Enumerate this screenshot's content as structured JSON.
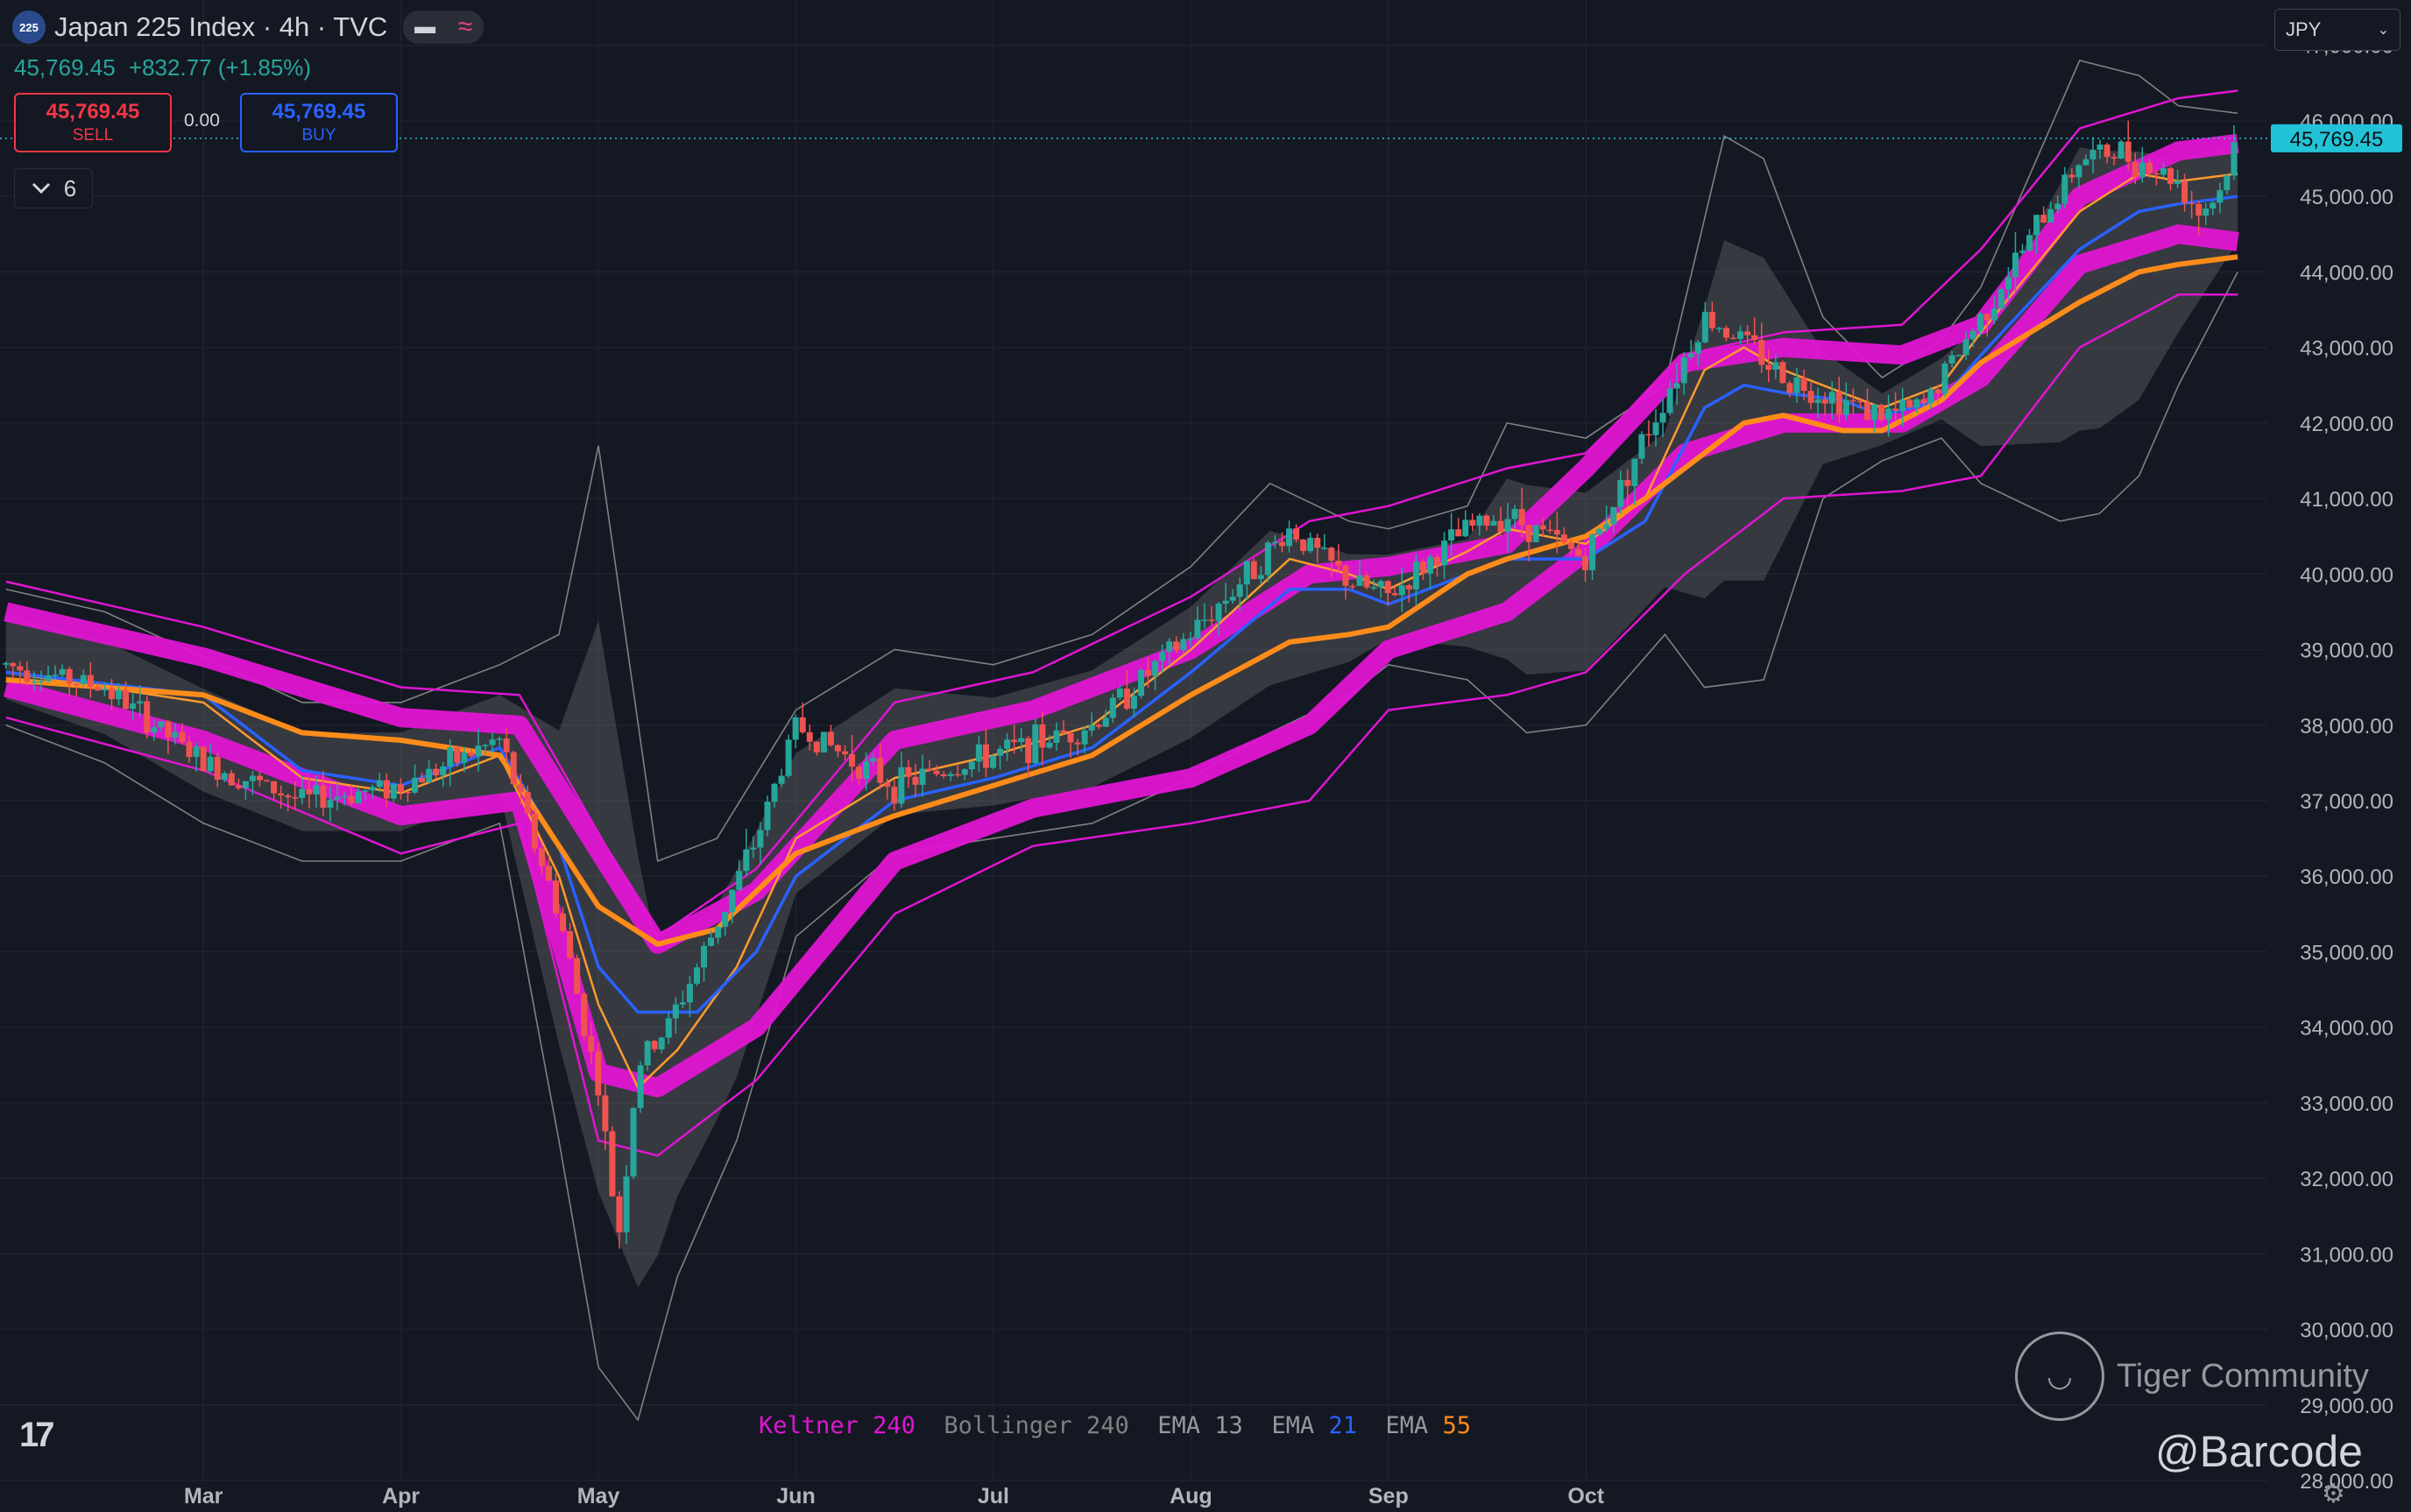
{
  "header": {
    "symbol_badge": "225",
    "title": "Japan 225 Index · 4h · TVC",
    "last_price": "45,769.45",
    "change": "+832.77 (+1.85%)",
    "sell_price": "45,769.45",
    "sell_label": "SELL",
    "buy_price": "45,769.45",
    "buy_label": "BUY",
    "spread": "0.00",
    "indicator_count": "6",
    "currency": "JPY"
  },
  "legend": {
    "keltner_name": "Keltner",
    "keltner_len": "240",
    "boll_name": "Bollinger",
    "boll_len": "240",
    "ema1_name": "EMA",
    "ema1_len": "13",
    "ema2_name": "EMA",
    "ema2_len": "21",
    "ema3_name": "EMA",
    "ema3_len": "55"
  },
  "watermark": {
    "brand": "Tiger Community",
    "handle": "@Barcode"
  },
  "colors": {
    "background": "#141823",
    "up": "#26a69a",
    "down": "#ef5350",
    "keltner": "#e015d3",
    "bollinger": "#808080",
    "ema13": "#ff9a2e",
    "ema21": "#2962ff",
    "ema55": "#ff8c1a",
    "price_line": "#22c3d6"
  },
  "chart_data": {
    "type": "line",
    "title": "Japan 225 Index · 4h · TVC",
    "xlabel": "",
    "ylabel": "",
    "x_ticks": [
      "Mar",
      "Apr",
      "May",
      "Jun",
      "Jul",
      "Aug",
      "Sep",
      "Oct"
    ],
    "ylim": [
      28000,
      47600
    ],
    "y_ticks": [
      47000,
      46000,
      45000,
      44000,
      43000,
      42000,
      41000,
      40000,
      39000,
      38000,
      37000,
      36000,
      35000,
      34000,
      33000,
      32000,
      31000,
      30000,
      29000,
      28000
    ],
    "y_tick_labels": [
      "47,000.00",
      "46,000.00",
      "45,000.00",
      "44,000.00",
      "43,000.00",
      "42,000.00",
      "41,000.00",
      "40,000.00",
      "39,000.00",
      "38,000.00",
      "37,000.00",
      "36,000.00",
      "35,000.00",
      "34,000.00",
      "33,000.00",
      "32,000.00",
      "31,000.00",
      "30,000.00",
      "29,000.00",
      "28,000.00"
    ],
    "current_price": 45769.45,
    "current_price_label": "45,769.45",
    "months": [
      2,
      3,
      4,
      5,
      6,
      7,
      8,
      9
    ],
    "close_track": {
      "t": [
        1.0,
        1.5,
        2.0,
        2.5,
        3.0,
        3.5,
        3.8,
        4.0,
        4.1,
        4.2,
        4.35,
        4.5,
        4.8,
        5.0,
        5.5,
        6.0,
        6.5,
        7.0,
        7.5,
        7.8,
        8.0,
        8.4,
        8.6,
        9.0,
        9.2,
        9.6,
        9.8,
        10.0,
        10.2,
        10.5,
        10.7,
        11.0,
        11.5,
        11.7,
        12.0,
        12.1,
        12.2,
        12.3
      ],
      "v": [
        38800,
        38500,
        37500,
        37000,
        37200,
        37800,
        35500,
        33200,
        31200,
        33500,
        34000,
        34800,
        36500,
        38000,
        37200,
        37600,
        38000,
        39200,
        40600,
        39900,
        39700,
        40600,
        40800,
        40200,
        41300,
        43400,
        43100,
        42600,
        42400,
        42100,
        42200,
        43400,
        45500,
        45600,
        45200,
        44800,
        45000,
        45769
      ]
    },
    "series": [
      {
        "name": "EMA 13",
        "t": [
          1.0,
          2.0,
          2.5,
          3.0,
          3.5,
          3.8,
          4.0,
          4.2,
          4.4,
          4.7,
          5.0,
          5.5,
          6.0,
          6.5,
          7.0,
          7.5,
          7.8,
          8.0,
          8.4,
          8.6,
          9.0,
          9.3,
          9.6,
          9.8,
          10.0,
          10.3,
          10.5,
          10.8,
          11.0,
          11.5,
          11.8,
          12.0,
          12.3
        ],
        "v": [
          38700,
          38300,
          37300,
          37100,
          37600,
          36000,
          34300,
          33200,
          33700,
          34800,
          36500,
          37300,
          37600,
          38000,
          39000,
          40200,
          40000,
          39800,
          40300,
          40600,
          40400,
          41000,
          42700,
          43000,
          42700,
          42400,
          42200,
          42500,
          43200,
          44800,
          45300,
          45200,
          45300
        ]
      },
      {
        "name": "EMA 21",
        "t": [
          1.0,
          2.0,
          2.5,
          3.0,
          3.5,
          3.8,
          4.0,
          4.2,
          4.5,
          4.8,
          5.0,
          5.5,
          6.0,
          6.5,
          7.0,
          7.5,
          7.8,
          8.0,
          8.4,
          8.6,
          9.0,
          9.3,
          9.6,
          9.8,
          10.0,
          10.3,
          10.5,
          10.8,
          11.0,
          11.5,
          11.8,
          12.0,
          12.3
        ],
        "v": [
          38700,
          38400,
          37400,
          37200,
          37700,
          36400,
          34800,
          34200,
          34200,
          35000,
          36000,
          37000,
          37300,
          37700,
          38700,
          39800,
          39800,
          39600,
          40000,
          40200,
          40200,
          40700,
          42200,
          42500,
          42400,
          42300,
          42100,
          42300,
          42900,
          44300,
          44800,
          44900,
          45000
        ]
      },
      {
        "name": "EMA 55",
        "t": [
          1.0,
          2.0,
          2.5,
          3.0,
          3.5,
          3.8,
          4.0,
          4.3,
          4.6,
          5.0,
          5.5,
          6.0,
          6.5,
          7.0,
          7.5,
          7.8,
          8.0,
          8.4,
          8.6,
          9.0,
          9.3,
          9.6,
          9.8,
          10.0,
          10.3,
          10.5,
          10.8,
          11.0,
          11.5,
          11.8,
          12.0,
          12.3
        ],
        "v": [
          38600,
          38400,
          37900,
          37800,
          37600,
          36400,
          35600,
          35100,
          35300,
          36300,
          36800,
          37200,
          37600,
          38400,
          39100,
          39200,
          39300,
          40000,
          40200,
          40500,
          41000,
          41600,
          42000,
          42100,
          41900,
          41900,
          42300,
          42800,
          43600,
          44000,
          44100,
          44200
        ]
      },
      {
        "name": "Keltner 240 upper",
        "t": [
          1.0,
          2.0,
          3.0,
          3.6,
          4.3,
          4.8,
          5.5,
          6.2,
          7.0,
          7.6,
          8.0,
          8.6,
          9.0,
          9.5,
          10.0,
          10.6,
          11.0,
          11.5,
          12.0,
          12.3
        ],
        "v": [
          39900,
          39300,
          38500,
          38400,
          35200,
          36100,
          38300,
          38700,
          39700,
          40700,
          40900,
          41400,
          41600,
          42900,
          43200,
          43300,
          44300,
          45900,
          46300,
          46400
        ]
      },
      {
        "name": "Keltner 240 middle upper",
        "t": [
          1.0,
          2.0,
          3.0,
          3.6,
          4.3,
          4.8,
          5.5,
          6.2,
          7.0,
          7.6,
          8.0,
          8.6,
          9.0,
          9.5,
          10.0,
          10.6,
          11.0,
          11.5,
          12.0,
          12.3
        ],
        "v": [
          39500,
          38900,
          38100,
          38000,
          35100,
          35800,
          37800,
          38200,
          39000,
          40000,
          40100,
          40400,
          41400,
          42800,
          43000,
          42900,
          43300,
          45000,
          45600,
          45700
        ]
      },
      {
        "name": "Keltner 240 middle lower",
        "t": [
          1.0,
          2.0,
          3.0,
          3.6,
          4.0,
          4.3,
          4.8,
          5.5,
          6.2,
          7.0,
          7.6,
          8.0,
          8.6,
          9.0,
          9.5,
          10.0,
          10.6,
          11.0,
          11.5,
          12.0,
          12.3
        ],
        "v": [
          38500,
          37800,
          36800,
          37000,
          33400,
          33200,
          34000,
          36200,
          36900,
          37300,
          38000,
          39000,
          39500,
          40300,
          41600,
          42000,
          42000,
          42600,
          44100,
          44500,
          44400
        ]
      },
      {
        "name": "Keltner 240 lower",
        "t": [
          1.0,
          2.0,
          3.0,
          3.6,
          4.0,
          4.3,
          4.8,
          5.5,
          6.2,
          7.0,
          7.6,
          8.0,
          8.6,
          9.0,
          9.5,
          10.0,
          10.6,
          11.0,
          11.5,
          12.0,
          12.3
        ],
        "v": [
          38100,
          37400,
          36300,
          36700,
          32500,
          32300,
          33300,
          35500,
          36400,
          36700,
          37000,
          38200,
          38400,
          38700,
          40000,
          41000,
          41100,
          41300,
          43000,
          43700,
          43700
        ]
      },
      {
        "name": "Bollinger 240 upper",
        "t": [
          1.0,
          1.5,
          2.0,
          2.5,
          3.0,
          3.5,
          3.8,
          4.0,
          4.3,
          4.6,
          5.0,
          5.5,
          6.0,
          6.5,
          7.0,
          7.4,
          7.8,
          8.0,
          8.4,
          8.6,
          9.0,
          9.4,
          9.7,
          9.9,
          10.2,
          10.5,
          10.8,
          11.0,
          11.5,
          11.8,
          12.0,
          12.3
        ],
        "v": [
          39800,
          39500,
          38900,
          38300,
          38300,
          38800,
          39200,
          41700,
          36200,
          36500,
          38200,
          39000,
          38800,
          39200,
          40100,
          41200,
          40700,
          40600,
          40900,
          42000,
          41800,
          42500,
          45800,
          45500,
          43400,
          42600,
          43100,
          43800,
          46800,
          46600,
          46200,
          46100
        ]
      },
      {
        "name": "Bollinger 240 lower",
        "t": [
          1.0,
          1.5,
          2.0,
          2.5,
          3.0,
          3.5,
          3.8,
          4.0,
          4.2,
          4.4,
          4.7,
          5.0,
          5.5,
          6.0,
          6.5,
          7.0,
          7.4,
          7.8,
          8.0,
          8.4,
          8.7,
          9.0,
          9.4,
          9.6,
          9.9,
          10.2,
          10.5,
          10.8,
          11.0,
          11.4,
          11.6,
          11.8,
          12.0,
          12.3
        ],
        "v": [
          38000,
          37500,
          36700,
          36200,
          36200,
          36700,
          32500,
          29500,
          28800,
          30700,
          32500,
          35200,
          36300,
          36500,
          36700,
          37300,
          37900,
          38400,
          38800,
          38600,
          37900,
          38000,
          39200,
          38500,
          38600,
          41000,
          41500,
          41800,
          41200,
          40700,
          40800,
          41300,
          42500,
          44000
        ]
      }
    ]
  }
}
